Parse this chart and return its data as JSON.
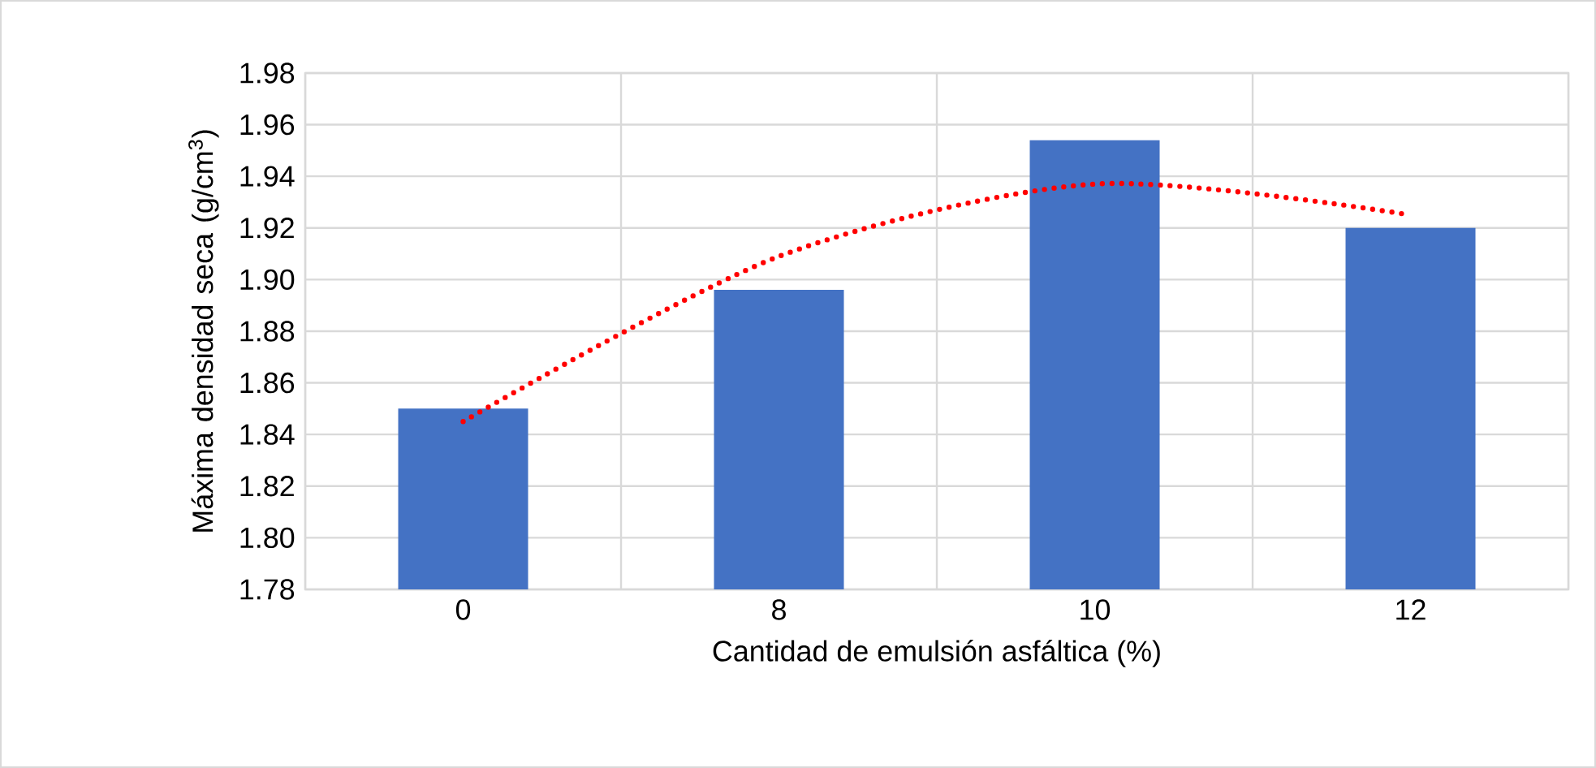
{
  "chart_data": {
    "type": "bar",
    "xlabel": "Cantidad de emulsión asfáltica (%)",
    "ylabel": "Máxima densidad seca (g/cm$^{3}$)",
    "categories": [
      "0",
      "8",
      "10",
      "12"
    ],
    "series": [
      {
        "color": "#4472c4",
        "values": [
          1.85,
          1.896,
          1.954,
          1.92
        ]
      },
      {
        "type": "line",
        "color": "#ff0000",
        "line_style": "dotted",
        "x": [
          "0",
          "8",
          "10",
          "12"
        ],
        "values": [
          1.845,
          1.909,
          1.937,
          1.925
        ]
      }
    ],
    "ylim": [
      1.78,
      1.98
    ],
    "yticks": [
      {
        "value": 1.78,
        "label": "1.78"
      },
      {
        "value": 1.8,
        "label": "1.80"
      },
      {
        "value": 1.82,
        "label": "1.82"
      },
      {
        "value": 1.84,
        "label": "1.84"
      },
      {
        "value": 1.86,
        "label": "1.86"
      },
      {
        "value": 1.88,
        "label": "1.88"
      },
      {
        "value": 1.9,
        "label": "1.90"
      },
      {
        "value": 1.92,
        "label": "1.92"
      },
      {
        "value": 1.94,
        "label": "1.94"
      },
      {
        "value": 1.96,
        "label": "1.96"
      },
      {
        "value": 1.98,
        "label": "1.98"
      }
    ],
    "grid": true
  }
}
